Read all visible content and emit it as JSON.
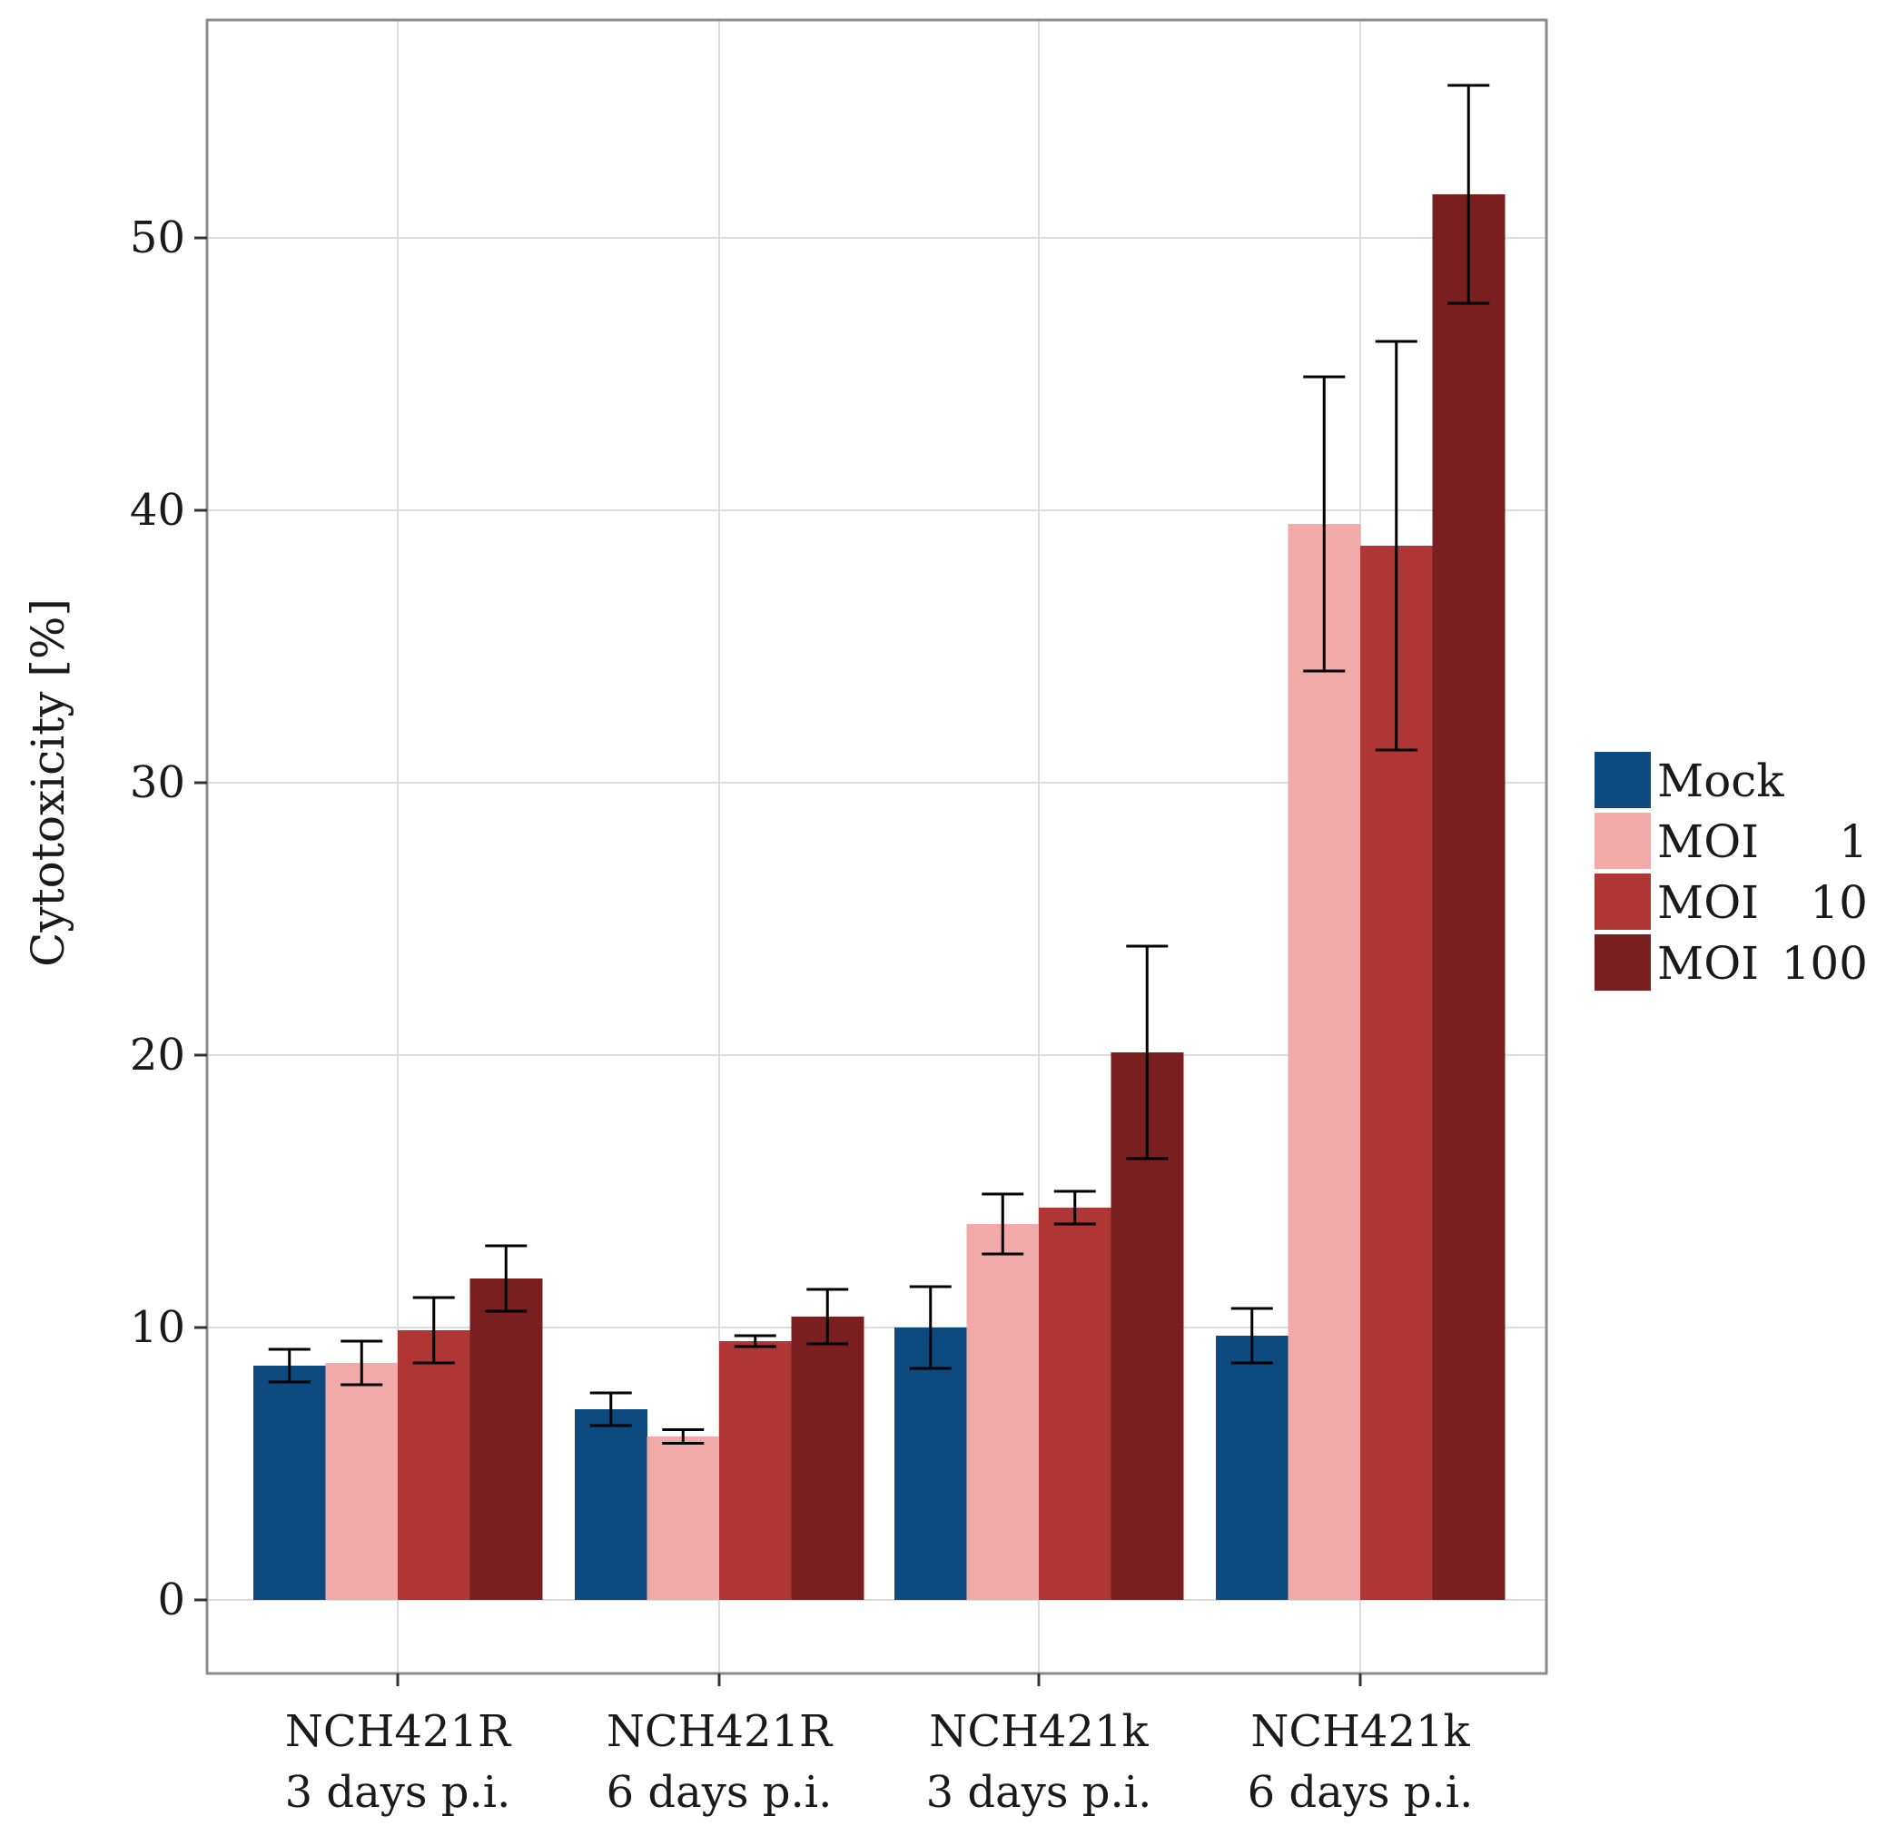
{
  "chart_data": {
    "type": "bar",
    "title": "",
    "xlabel": "",
    "ylabel": "Cytotoxicity [%]",
    "ylim": [
      -2.7,
      58
    ],
    "yticks": [
      0,
      10,
      20,
      30,
      40,
      50
    ],
    "grid": true,
    "legend_position": "right",
    "categories": [
      {
        "line1": "NCH421R",
        "line2": "3 days p.i."
      },
      {
        "line1": "NCH421R",
        "line2": "6 days p.i."
      },
      {
        "line1": "NCH421k",
        "line2": "3 days p.i."
      },
      {
        "line1": "NCH421k",
        "line2": "6 days p.i."
      }
    ],
    "series": [
      {
        "name": "Mock",
        "legend_name": "Mock",
        "legend_value": "",
        "color": "#0d4a80",
        "values": [
          8.6,
          7.0,
          10.0,
          9.7
        ],
        "errors": [
          0.6,
          0.6,
          1.5,
          1.0
        ]
      },
      {
        "name": "MOI 1",
        "legend_name": "MOI",
        "legend_value": "1",
        "color": "#f2aaa8",
        "values": [
          8.7,
          6.0,
          13.8,
          39.5
        ],
        "errors": [
          0.8,
          0.25,
          1.1,
          5.4
        ]
      },
      {
        "name": "MOI 10",
        "legend_name": "MOI",
        "legend_value": "10",
        "color": "#b03535",
        "values": [
          9.9,
          9.5,
          14.4,
          38.7
        ],
        "errors": [
          1.2,
          0.2,
          0.6,
          7.5
        ]
      },
      {
        "name": "MOI 100",
        "legend_name": "MOI",
        "legend_value": "100",
        "color": "#7a1f1f",
        "values": [
          11.8,
          10.4,
          20.1,
          51.6
        ],
        "errors": [
          1.2,
          1.0,
          3.9,
          4.0
        ]
      }
    ]
  },
  "colors": {
    "panel_border": "#8c8c8c",
    "grid": "#dcdcdc",
    "errorbar": "#000000",
    "text": "#1a1a1a"
  }
}
